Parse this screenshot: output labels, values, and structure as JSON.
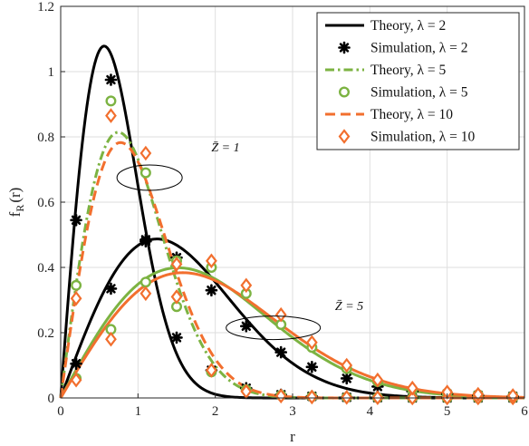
{
  "chart_data": {
    "type": "line",
    "xlabel": "r",
    "ylabel_main": "f",
    "ylabel_sub": "R",
    "ylabel_tail": "(r)",
    "xlim": [
      0,
      6
    ],
    "ylim": [
      0,
      1.2
    ],
    "xticks": [
      "0",
      "1",
      "2",
      "3",
      "4",
      "5",
      "6"
    ],
    "yticks": [
      "0",
      "0.2",
      "0.4",
      "0.6",
      "0.8",
      "1",
      "1.2"
    ],
    "grid": true,
    "legend_position": "top-right",
    "legend": [
      "Theory, λ = 2",
      "Simulation, λ = 2",
      "Theory, λ = 5",
      "Simulation, λ = 5",
      "Theory, λ = 10",
      "Simulation, λ = 10"
    ],
    "annotations": [
      {
        "text": "Z̄ = 1",
        "x": 1.95,
        "y": 0.755
      },
      {
        "text": "Z̄ = 5",
        "x": 3.55,
        "y": 0.27
      }
    ],
    "series": [
      {
        "name": "Theory, λ = 2",
        "kind": "theory",
        "color": "#000000",
        "style": "solid",
        "zbar": 1,
        "scale": 0.5625
      },
      {
        "name": "Theory, λ = 2",
        "kind": "theory",
        "color": "#000000",
        "style": "solid",
        "zbar": 5,
        "scale": 1.245
      },
      {
        "name": "Simulation, λ = 2",
        "kind": "sim",
        "color": "#000000",
        "marker": "asterisk",
        "zbar": 1,
        "points": [
          [
            0.2,
            0.545
          ],
          [
            0.65,
            0.975
          ],
          [
            1.1,
            0.48
          ],
          [
            1.5,
            0.185
          ],
          [
            1.95,
            0.085
          ],
          [
            2.4,
            0.03
          ],
          [
            2.85,
            0.01
          ],
          [
            3.25,
            0.005
          ],
          [
            3.7,
            0.002
          ],
          [
            4.1,
            0.001
          ],
          [
            4.55,
            0.0
          ],
          [
            5.0,
            0.0
          ],
          [
            5.4,
            0.0
          ],
          [
            5.85,
            0.0
          ]
        ]
      },
      {
        "name": "Simulation, λ = 2",
        "kind": "sim",
        "color": "#000000",
        "marker": "asterisk",
        "zbar": 5,
        "points": [
          [
            0.2,
            0.105
          ],
          [
            0.65,
            0.335
          ],
          [
            1.1,
            0.485
          ],
          [
            1.5,
            0.43
          ],
          [
            1.95,
            0.33
          ],
          [
            2.4,
            0.22
          ],
          [
            2.85,
            0.14
          ],
          [
            3.25,
            0.095
          ],
          [
            3.7,
            0.06
          ],
          [
            4.1,
            0.035
          ],
          [
            4.55,
            0.02
          ],
          [
            5.0,
            0.012
          ],
          [
            5.4,
            0.008
          ],
          [
            5.85,
            0.005
          ]
        ]
      },
      {
        "name": "Theory, λ = 5",
        "kind": "theory",
        "color": "#7cb342",
        "style": "dashdot",
        "zbar": 1,
        "scale": 0.745
      },
      {
        "name": "Theory, λ = 5",
        "kind": "theory",
        "color": "#7cb342",
        "style": "solid",
        "zbar": 5,
        "scale": 1.52
      },
      {
        "name": "Simulation, λ = 5",
        "kind": "sim",
        "color": "#7cb342",
        "marker": "circle",
        "zbar": 1,
        "points": [
          [
            0.2,
            0.345
          ],
          [
            0.65,
            0.91
          ],
          [
            1.1,
            0.69
          ],
          [
            1.5,
            0.28
          ],
          [
            1.95,
            0.08
          ],
          [
            2.4,
            0.025
          ],
          [
            2.85,
            0.008
          ],
          [
            3.25,
            0.004
          ],
          [
            3.7,
            0.002
          ],
          [
            4.1,
            0.001
          ],
          [
            4.55,
            0.0
          ],
          [
            5.0,
            0.0
          ],
          [
            5.4,
            0.0
          ],
          [
            5.85,
            0.0
          ]
        ]
      },
      {
        "name": "Simulation, λ = 5",
        "kind": "sim",
        "color": "#7cb342",
        "marker": "circle",
        "zbar": 5,
        "points": [
          [
            0.2,
            0.06
          ],
          [
            0.65,
            0.21
          ],
          [
            1.1,
            0.355
          ],
          [
            1.5,
            0.42
          ],
          [
            1.95,
            0.4
          ],
          [
            2.4,
            0.32
          ],
          [
            2.85,
            0.225
          ],
          [
            3.25,
            0.155
          ],
          [
            3.7,
            0.09
          ],
          [
            4.1,
            0.05
          ],
          [
            4.55,
            0.025
          ],
          [
            5.0,
            0.015
          ],
          [
            5.4,
            0.01
          ],
          [
            5.85,
            0.006
          ]
        ]
      },
      {
        "name": "Theory, λ = 10",
        "kind": "theory",
        "color": "#f26f2e",
        "style": "dash",
        "zbar": 1,
        "scale": 0.775
      },
      {
        "name": "Theory, λ = 10",
        "kind": "theory",
        "color": "#f26f2e",
        "style": "solid",
        "zbar": 5,
        "scale": 1.58
      },
      {
        "name": "Simulation, λ = 10",
        "kind": "sim",
        "color": "#f26f2e",
        "marker": "diamond",
        "zbar": 1,
        "points": [
          [
            0.2,
            0.305
          ],
          [
            0.65,
            0.865
          ],
          [
            1.1,
            0.75
          ],
          [
            1.5,
            0.31
          ],
          [
            1.95,
            0.085
          ],
          [
            2.4,
            0.02
          ],
          [
            2.85,
            0.006
          ],
          [
            3.25,
            0.003
          ],
          [
            3.7,
            0.002
          ],
          [
            4.1,
            0.001
          ],
          [
            4.55,
            0.0
          ],
          [
            5.0,
            0.0
          ],
          [
            5.4,
            0.0
          ],
          [
            5.85,
            0.0
          ]
        ]
      },
      {
        "name": "Simulation, λ = 10",
        "kind": "sim",
        "color": "#f26f2e",
        "marker": "diamond",
        "zbar": 5,
        "points": [
          [
            0.2,
            0.055
          ],
          [
            0.65,
            0.18
          ],
          [
            1.1,
            0.32
          ],
          [
            1.5,
            0.41
          ],
          [
            1.95,
            0.42
          ],
          [
            2.4,
            0.345
          ],
          [
            2.85,
            0.255
          ],
          [
            3.25,
            0.17
          ],
          [
            3.7,
            0.1
          ],
          [
            4.1,
            0.055
          ],
          [
            4.55,
            0.03
          ],
          [
            5.0,
            0.018
          ],
          [
            5.4,
            0.011
          ],
          [
            5.85,
            0.007
          ]
        ]
      }
    ]
  }
}
